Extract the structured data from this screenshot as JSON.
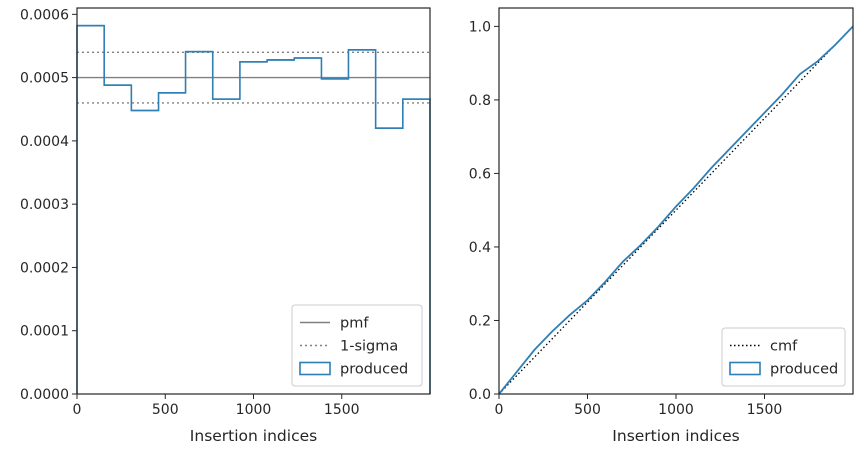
{
  "chart_data": [
    {
      "type": "step-histogram",
      "xlabel": "Insertion indices",
      "ylabel": "",
      "xlim": [
        0,
        2000
      ],
      "ylim": [
        0,
        0.00061
      ],
      "xticks": [
        0,
        500,
        1000,
        1500
      ],
      "xtick_labels": [
        "0",
        "500",
        "1000",
        "1500"
      ],
      "yticks": [
        0,
        0.0001,
        0.0002,
        0.0003,
        0.0004,
        0.0005,
        0.0006
      ],
      "ytick_labels": [
        "0.0000",
        "0.0001",
        "0.0002",
        "0.0003",
        "0.0004",
        "0.0005",
        "0.0006"
      ],
      "bin_edges": [
        0,
        154,
        308,
        462,
        615,
        769,
        923,
        1077,
        1231,
        1385,
        1538,
        1692,
        1846,
        2000
      ],
      "series": [
        {
          "name": "produced",
          "color": "#2f7fb5",
          "values": [
            0.000582,
            0.000488,
            0.000448,
            0.000476,
            0.000541,
            0.000466,
            0.000525,
            0.000528,
            0.000531,
            0.000498,
            0.000544,
            0.00042,
            0.000466
          ]
        }
      ],
      "reference_lines": [
        {
          "name": "pmf",
          "y": 0.0005,
          "style": "solid",
          "color": "#808080"
        },
        {
          "name": "1-sigma",
          "y": [
            0.00046,
            0.00054
          ],
          "style": "dotted",
          "color": "#808080"
        }
      ],
      "legend": [
        "pmf",
        "1-sigma",
        "produced"
      ],
      "legend_position": "lower-right",
      "grid": false
    },
    {
      "type": "line",
      "xlabel": "Insertion indices",
      "ylabel": "",
      "xlim": [
        0,
        2000
      ],
      "ylim": [
        0,
        1.05
      ],
      "xticks": [
        0,
        500,
        1000,
        1500
      ],
      "xtick_labels": [
        "0",
        "500",
        "1000",
        "1500"
      ],
      "yticks": [
        0,
        0.2,
        0.4,
        0.6,
        0.8,
        1.0
      ],
      "ytick_labels": [
        "0.0",
        "0.2",
        "0.4",
        "0.6",
        "0.8",
        "1.0"
      ],
      "series": [
        {
          "name": "cmf",
          "style": "dotted",
          "color": "#000000",
          "x": [
            0,
            2000
          ],
          "y": [
            0,
            1.0
          ]
        },
        {
          "name": "produced",
          "style": "solid",
          "color": "#2f7fb5",
          "x": [
            0,
            100,
            200,
            300,
            400,
            500,
            600,
            700,
            800,
            900,
            1000,
            1100,
            1200,
            1300,
            1400,
            1500,
            1600,
            1700,
            1800,
            1900,
            2000
          ],
          "y": [
            0,
            0.06,
            0.12,
            0.17,
            0.215,
            0.255,
            0.305,
            0.36,
            0.405,
            0.455,
            0.51,
            0.56,
            0.615,
            0.665,
            0.715,
            0.765,
            0.815,
            0.87,
            0.905,
            0.95,
            1.0
          ]
        }
      ],
      "legend": [
        "cmf",
        "produced"
      ],
      "legend_position": "lower-right",
      "grid": false
    }
  ]
}
